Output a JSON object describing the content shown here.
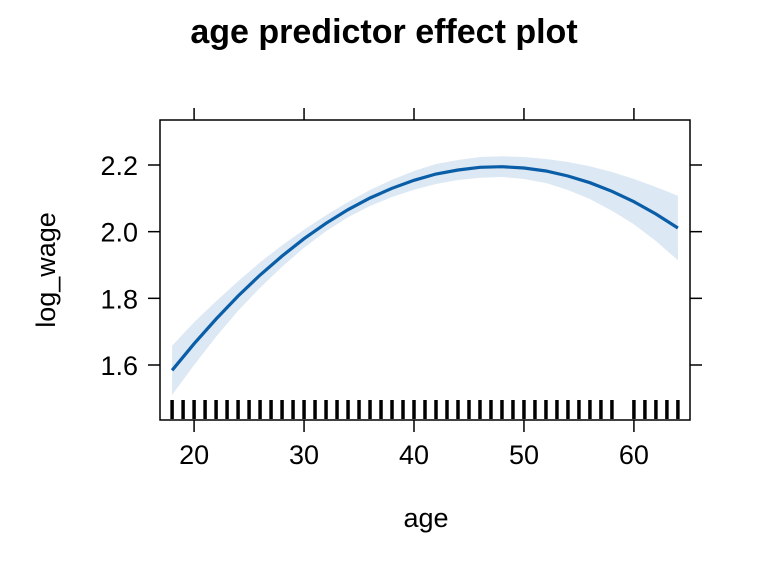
{
  "chart_data": {
    "type": "line",
    "title": "age predictor effect plot",
    "xlabel": "age",
    "ylabel": "log_wage",
    "xlim": [
      16.9,
      65.1
    ],
    "ylim": [
      1.435,
      2.335
    ],
    "x_ticks": [
      20,
      30,
      40,
      50,
      60
    ],
    "y_ticks": [
      1.6,
      1.8,
      2.0,
      2.2
    ],
    "x_tick_labels": [
      "20",
      "30",
      "40",
      "50",
      "60"
    ],
    "y_tick_labels": [
      "1.6",
      "1.8",
      "2.0",
      "2.2"
    ],
    "grid": false,
    "legend": "none",
    "line_color": "#0a5ea8",
    "band_color": "#dce8f3",
    "series": [
      {
        "x": [
          18,
          20,
          22,
          24,
          26,
          28,
          30,
          32,
          34,
          36,
          38,
          40,
          42,
          44,
          46,
          48,
          50,
          52,
          54,
          56,
          58,
          60,
          62,
          64
        ],
        "values": [
          1.584,
          1.664,
          1.738,
          1.807,
          1.87,
          1.927,
          1.979,
          2.025,
          2.066,
          2.101,
          2.13,
          2.154,
          2.173,
          2.185,
          2.193,
          2.195,
          2.191,
          2.182,
          2.167,
          2.147,
          2.121,
          2.09,
          2.053,
          2.011
        ],
        "lower": [
          1.51,
          1.6,
          1.685,
          1.763,
          1.832,
          1.895,
          1.952,
          2.001,
          2.043,
          2.077,
          2.104,
          2.126,
          2.143,
          2.155,
          2.162,
          2.164,
          2.158,
          2.146,
          2.125,
          2.098,
          2.063,
          2.022,
          1.972,
          1.914
        ],
        "upper": [
          1.658,
          1.728,
          1.791,
          1.851,
          1.908,
          1.959,
          2.006,
          2.049,
          2.089,
          2.125,
          2.156,
          2.182,
          2.203,
          2.215,
          2.224,
          2.226,
          2.224,
          2.218,
          2.209,
          2.196,
          2.179,
          2.158,
          2.134,
          2.108
        ]
      }
    ],
    "rug_x": [
      18,
      19,
      20,
      21,
      22,
      23,
      24,
      25,
      26,
      27,
      28,
      29,
      30,
      31,
      32,
      33,
      34,
      35,
      36,
      37,
      38,
      39,
      40,
      41,
      42,
      43,
      44,
      45,
      46,
      47,
      48,
      49,
      50,
      51,
      52,
      53,
      54,
      55,
      56,
      57,
      58,
      60,
      61,
      62,
      63,
      64
    ]
  }
}
